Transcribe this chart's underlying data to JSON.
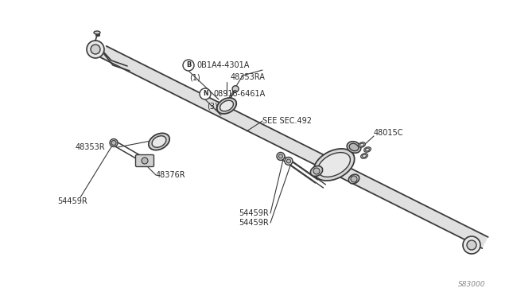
{
  "background_color": "#ffffff",
  "line_color": "#3a3a3a",
  "fill_light": "#e8e8e8",
  "fill_mid": "#d0d0d0",
  "fill_dark": "#b8b8b8",
  "text_color": "#2a2a2a",
  "watermark_color": "#888888",
  "fig_width": 6.4,
  "fig_height": 3.72,
  "dpi": 100,
  "labels": {
    "B_marker": "B",
    "B_part": "0B1A4-4301A",
    "B_qty": "(1)",
    "part_48353RA": "48353RA",
    "N_marker": "N",
    "N_part": "08918-6461A",
    "N_qty": "(3)",
    "see_sec": "SEE SEC.492",
    "part_48015C": "48015C",
    "part_48353R": "48353R",
    "part_48376R": "48376R",
    "part_54459R": "54459R",
    "watermark": "S83000"
  }
}
